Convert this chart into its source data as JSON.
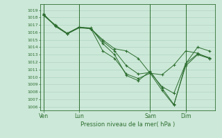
{
  "title": "",
  "xlabel": "Pression niveau de la mer( hPa )",
  "ylabel": "",
  "background_color": "#cce8d8",
  "grid_color": "#aacfbc",
  "line_color": "#2d6e30",
  "ylim": [
    1005.5,
    1019.8
  ],
  "yticks": [
    1006,
    1007,
    1008,
    1009,
    1010,
    1011,
    1012,
    1013,
    1014,
    1015,
    1016,
    1017,
    1018,
    1019
  ],
  "xtick_labels": [
    "Ven",
    "Lun",
    "Sam",
    "Dim"
  ],
  "xtick_positions": [
    0,
    3,
    9,
    12
  ],
  "vlines": [
    0,
    3,
    9,
    12
  ],
  "series": [
    [
      1018.3,
      1017.0,
      1015.8,
      1016.6,
      1016.5,
      1015.0,
      1013.8,
      1013.5,
      1012.5,
      1010.5,
      1010.3,
      1011.6,
      1013.5,
      1013.2,
      1012.5
    ],
    [
      1018.5,
      1016.8,
      1015.8,
      1016.7,
      1016.6,
      1014.5,
      1013.0,
      1010.2,
      1009.5,
      1010.8,
      1008.5,
      1006.3,
      1011.5,
      1013.0,
      1012.5
    ],
    [
      1018.3,
      1016.9,
      1015.9,
      1016.7,
      1016.5,
      1013.5,
      1012.5,
      1010.4,
      1009.8,
      1010.5,
      1008.2,
      1006.2,
      1011.8,
      1014.0,
      1013.5
    ],
    [
      1018.4,
      1016.9,
      1015.8,
      1016.7,
      1016.5,
      1014.8,
      1013.5,
      1011.5,
      1010.4,
      1010.6,
      1008.7,
      1007.8,
      1011.8,
      1013.1,
      1012.6
    ]
  ],
  "x_positions": [
    0,
    1,
    2,
    3,
    4,
    5,
    6,
    7,
    8,
    9,
    10,
    11,
    12,
    13,
    14
  ],
  "xlim": [
    -0.3,
    14.5
  ]
}
